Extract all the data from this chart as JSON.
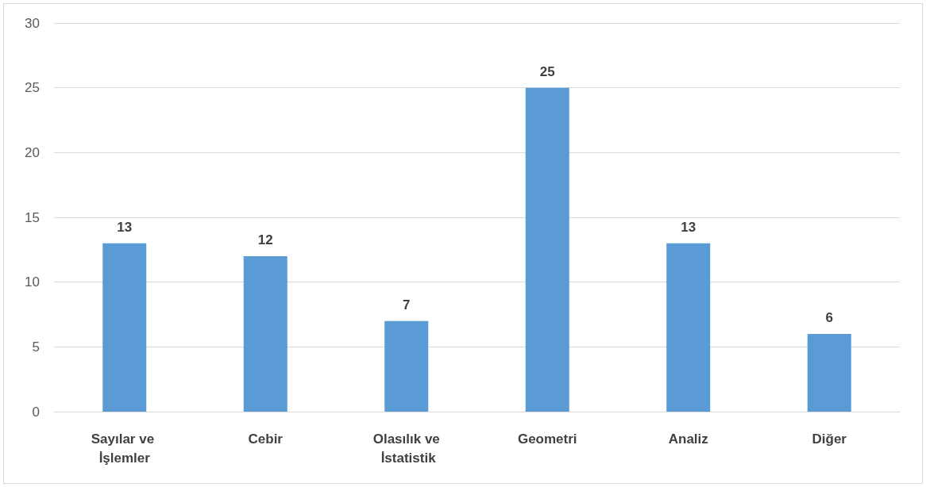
{
  "chart_data": {
    "type": "bar",
    "categories": [
      "Sayılar ve İşlemler",
      "Cebir",
      "Olasılık ve İstatistik",
      "Geometri",
      "Analiz",
      "Diğer"
    ],
    "values": [
      13,
      12,
      7,
      25,
      13,
      6
    ],
    "color": "#5b9bd5",
    "ylim": [
      0,
      30
    ],
    "yticks": [
      0,
      5,
      10,
      15,
      20,
      25,
      30
    ],
    "grid": "y",
    "data_labels": true
  }
}
